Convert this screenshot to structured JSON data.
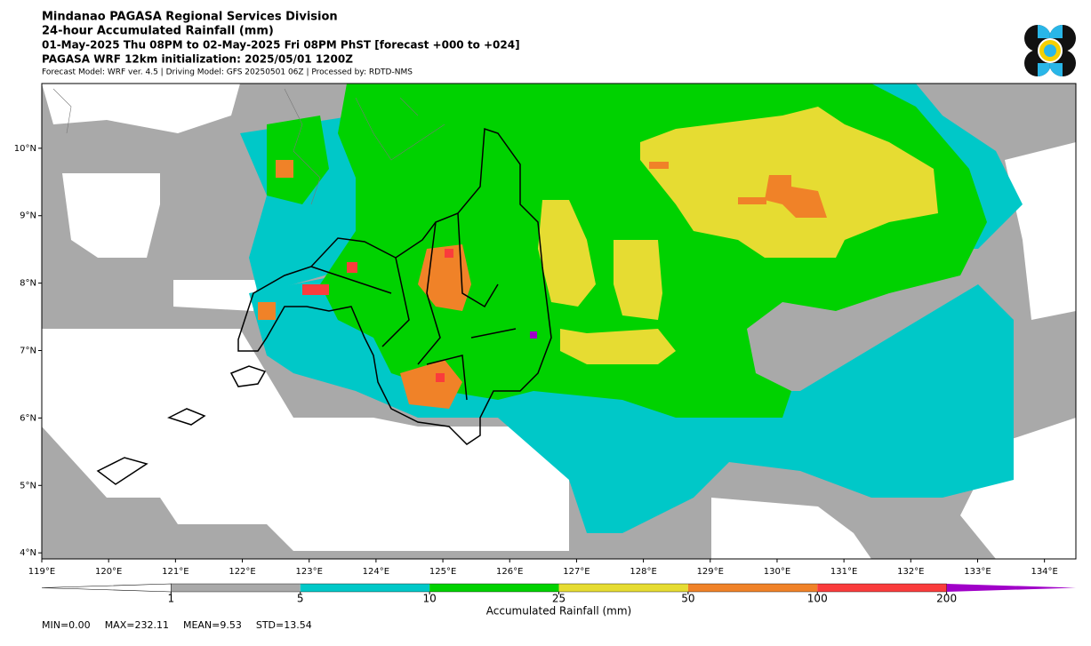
{
  "header": {
    "lines": [
      "Mindanao PAGASA Regional Services Division",
      "24-hour Accumulated Rainfall (mm)",
      "01-May-2025 Thu 08PM to 02-May-2025 Fri 08PM PhST [forecast +000 to +024]",
      "PAGASA WRF 12km initialization: 2025/05/01 1200Z"
    ],
    "note": "Forecast Model: WRF ver. 4.5 | Driving Model: GFS 20250501 06Z | Processed by: RDTD-NMS"
  },
  "map": {
    "xlim": [
      119,
      134.47
    ],
    "ylim": [
      3.91,
      10.96
    ],
    "xticks": [
      {
        "value": 119,
        "label": "119°E"
      },
      {
        "value": 120,
        "label": "120°E"
      },
      {
        "value": 121,
        "label": "121°E"
      },
      {
        "value": 122,
        "label": "122°E"
      },
      {
        "value": 123,
        "label": "123°E"
      },
      {
        "value": 124,
        "label": "124°E"
      },
      {
        "value": 125,
        "label": "125°E"
      },
      {
        "value": 126,
        "label": "126°E"
      },
      {
        "value": 127,
        "label": "127°E"
      },
      {
        "value": 128,
        "label": "128°E"
      },
      {
        "value": 129,
        "label": "129°E"
      },
      {
        "value": 130,
        "label": "130°E"
      },
      {
        "value": 131,
        "label": "131°E"
      },
      {
        "value": 132,
        "label": "132°E"
      },
      {
        "value": 133,
        "label": "133°E"
      },
      {
        "value": 134,
        "label": "134°E"
      }
    ],
    "yticks": [
      {
        "value": 4,
        "label": "4°N"
      },
      {
        "value": 5,
        "label": "5°N"
      },
      {
        "value": 6,
        "label": "6°N"
      },
      {
        "value": 7,
        "label": "7°N"
      },
      {
        "value": 8,
        "label": "8°N"
      },
      {
        "value": 9,
        "label": "9°N"
      },
      {
        "value": 10,
        "label": "10°N"
      }
    ]
  },
  "colorbar": {
    "label": "Accumulated Rainfall (mm)",
    "levels": [
      1,
      5,
      10,
      25,
      50,
      100,
      200
    ],
    "colors": [
      "#a9a9a9",
      "#00c8c8",
      "#00d200",
      "#e6dc32",
      "#f08228",
      "#fa3c3c",
      "#a000c8"
    ]
  },
  "stats": [
    "MIN=0.00",
    "MAX=232.11",
    "MEAN=9.53",
    "STD=13.54"
  ]
}
